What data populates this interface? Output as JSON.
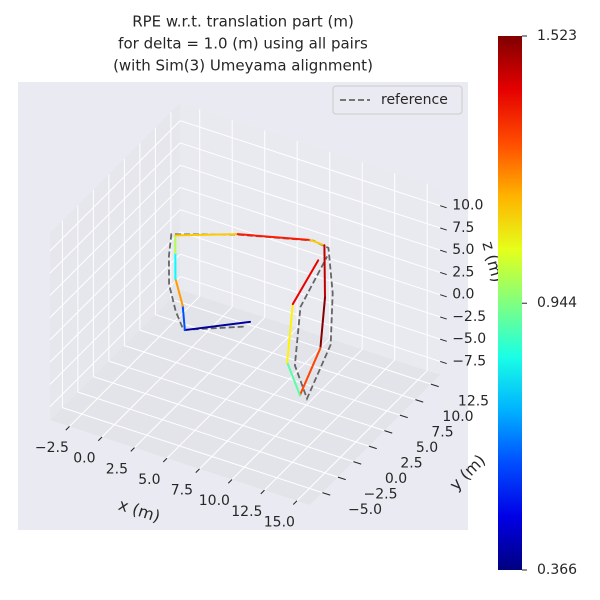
{
  "chart_data": {
    "type": "line3d",
    "title": [
      "RPE w.r.t. translation part (m)",
      "for delta = 1.0 (m) using all pairs",
      "(with Sim(3) Umeyama alignment)"
    ],
    "xlabel": "x (m)",
    "ylabel": "y (m)",
    "zlabel": "z (m)",
    "xlim": [
      -4,
      16
    ],
    "ylim": [
      -7,
      14
    ],
    "zlim": [
      -9,
      12
    ],
    "xticks": [
      {
        "value": -2.5,
        "label": "−2.5"
      },
      {
        "value": 0,
        "label": "0.0"
      },
      2.5,
      {
        "value": 5,
        "label": "5.0"
      },
      7.5,
      {
        "value": 10,
        "label": "10.0"
      },
      12.5,
      {
        "value": 15,
        "label": "15.0"
      }
    ],
    "yticks": [
      {
        "value": -5,
        "label": "−5.0"
      },
      {
        "value": -2.5,
        "label": "−2.5"
      },
      {
        "value": 0,
        "label": "0.0"
      },
      2.5,
      {
        "value": 5,
        "label": "5.0"
      },
      7.5,
      {
        "value": 10,
        "label": "10.0"
      },
      12.5
    ],
    "zticks": [
      {
        "value": -7.5,
        "label": "−7.5"
      },
      {
        "value": -5,
        "label": "−5.0"
      },
      {
        "value": -2.5,
        "label": "−2.5"
      },
      {
        "value": 0,
        "label": "0.0"
      },
      2.5,
      {
        "value": 5,
        "label": "5.0"
      },
      7.5,
      {
        "value": 10,
        "label": "10.0"
      }
    ],
    "grid": true,
    "legend": "upper right",
    "series": [
      {
        "name": "reference",
        "color": "#666666",
        "style": "dashed",
        "x": [
          4.6,
          1.4,
          0.9,
          0.2,
          -0.1,
          -0.2,
          3.8,
          8.8,
          9.6,
          10.4,
          11.2,
          11.0,
          9.4,
          8.4,
          9.5
        ],
        "y": [
          6.2,
          3.2,
          3.0,
          3.4,
          4.0,
          4.6,
          7.0,
          8.6,
          9.4,
          8.4,
          6.4,
          3.0,
          4.4,
          7.4,
          9.4
        ],
        "z": [
          -3.6,
          -3.4,
          -1.4,
          1.0,
          3.6,
          5.6,
          5.8,
          6.4,
          5.4,
          1.4,
          -2.6,
          -6.4,
          -4.4,
          -0.4,
          4.4
        ]
      }
    ],
    "trajectory": {
      "x": [
        4.9,
        1.7,
        1.2,
        0.5,
        0.3,
        0.3,
        4.0,
        8.4,
        9.0,
        10.0,
        10.6,
        10.6,
        9.0,
        8.0,
        9.0
      ],
      "y": [
        6.6,
        2.8,
        3.5,
        3.8,
        4.2,
        4.2,
        6.5,
        9.0,
        10.0,
        8.0,
        6.0,
        2.7,
        4.0,
        7.0,
        9.0
      ],
      "z": [
        -3.2,
        -3.0,
        -1.0,
        1.5,
        4.0,
        6.0,
        6.3,
        6.0,
        5.0,
        1.0,
        -3.0,
        -6.0,
        -4.0,
        0.0,
        4.0
      ],
      "error": [
        0.4,
        0.6,
        1.2,
        0.8,
        1.0,
        1.15,
        1.35,
        1.15,
        1.45,
        1.52,
        1.3,
        0.9,
        1.1,
        1.4,
        1.45
      ]
    },
    "colorbar": {
      "colormap": "jet",
      "lim": [
        0.366,
        1.523
      ],
      "ticks": [
        0.366,
        0.944,
        1.523
      ]
    }
  }
}
